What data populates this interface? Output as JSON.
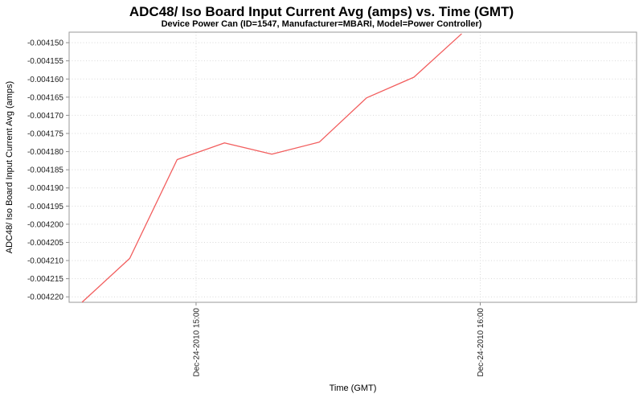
{
  "chart_data": {
    "type": "line",
    "title": "ADC48/ Iso Board Input Current Avg (amps) vs. Time (GMT)",
    "subtitle": "Device Power Can (ID=1547, Manufacturer=MBARI, Model=Power Controller)",
    "xlabel": "Time (GMT)",
    "ylabel": "ADC48/ Iso Board Input Current Avg (amps)",
    "legend": "none",
    "grid": "dotted",
    "xlim_minutes_since_1400": [
      33.2,
      153
    ],
    "ylim": [
      -0.0042215,
      -0.0041471
    ],
    "xticks": [
      {
        "label": "Dec-24-2010 15:00",
        "minutes": 60
      },
      {
        "label": "Dec-24-2010 16:00",
        "minutes": 120
      }
    ],
    "yticks": [
      "-0.004150",
      "-0.004155",
      "-0.004160",
      "-0.004165",
      "-0.004170",
      "-0.004175",
      "-0.004180",
      "-0.004185",
      "-0.004190",
      "-0.004195",
      "-0.004200",
      "-0.004205",
      "-0.004210",
      "-0.004215",
      "-0.004220"
    ],
    "series": [
      {
        "name": "ADC48/ Iso Board Input Current Avg (amps)",
        "color": "#f25d5d",
        "points": [
          {
            "time": "Dec-24-2010 14:36",
            "minutes": 36,
            "value": -0.0042214
          },
          {
            "time": "Dec-24-2010 14:46",
            "minutes": 46,
            "value": -0.0042094
          },
          {
            "time": "Dec-24-2010 14:56",
            "minutes": 56,
            "value": -0.0041822
          },
          {
            "time": "Dec-24-2010 15:06",
            "minutes": 66,
            "value": -0.0041776
          },
          {
            "time": "Dec-24-2010 15:16",
            "minutes": 76,
            "value": -0.0041807
          },
          {
            "time": "Dec-24-2010 15:26",
            "minutes": 86,
            "value": -0.0041774
          },
          {
            "time": "Dec-24-2010 15:36",
            "minutes": 96,
            "value": -0.0041652
          },
          {
            "time": "Dec-24-2010 15:46",
            "minutes": 106,
            "value": -0.0041595
          },
          {
            "time": "Dec-24-2010 15:56",
            "minutes": 116,
            "value": -0.0041476
          }
        ]
      }
    ],
    "colors": {
      "line": "#f25d5d",
      "grid": "#d9d9d9",
      "plot_border": "#9a9a9a",
      "text": "#000000",
      "tick_text": "#222222",
      "background": "#ffffff"
    }
  }
}
